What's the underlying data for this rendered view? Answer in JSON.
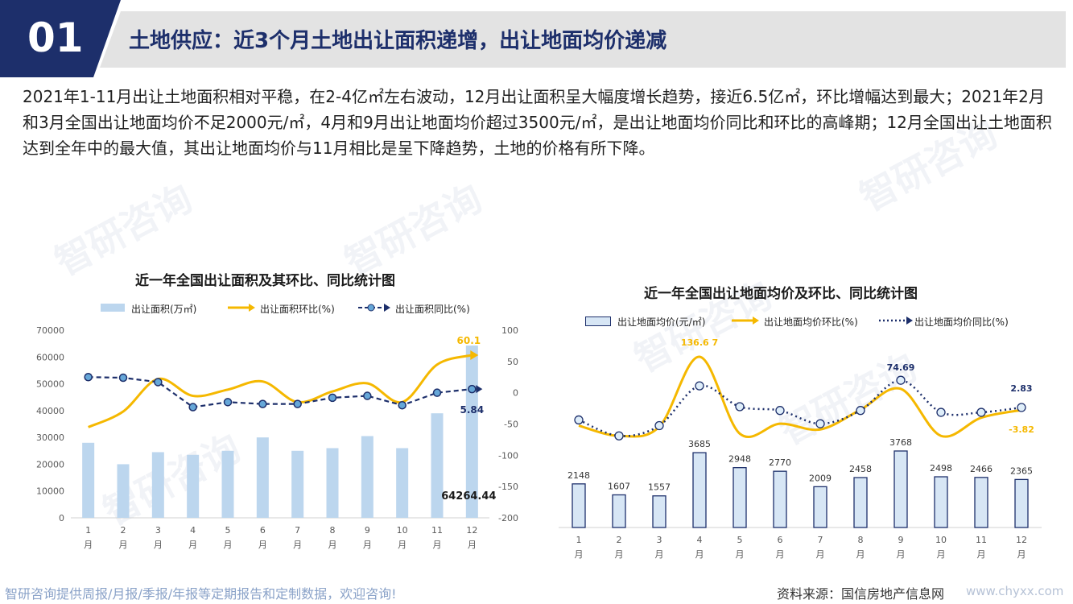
{
  "header": {
    "number": "01",
    "title": "土地供应：近3个月土地出让面积递增，出让地面均价递减"
  },
  "description": "2021年1-11月出让土地面积相对平稳，在2-4亿㎡左右波动，12月出让面积呈大幅度增长趋势，接近6.5亿㎡，环比增幅达到最大；2021年2月和3月全国出让地面均价不足2000元/㎡，4月和9月出让地面均价超过3500元/㎡，是出让地面均价同比和环比的高峰期；12月全国出让土地面积达到全年中的最大值，其出让地面均价与11月相比是呈下降趋势，土地的价格有所下降。",
  "watermark": {
    "brand": "智研咨询"
  },
  "footer": {
    "left_note": "智研咨询提供周报/月报/季报/年报等定期报告和定制数据，欢迎咨询!",
    "source": "资料来源：国信房地产信息网",
    "url": "www.chyxx.com"
  },
  "colors": {
    "navy": "#1d2f6b",
    "bar_fill": "#bcd6ee",
    "bar_outline": "#1d2f6b",
    "gold": "#f5b800",
    "dot_line": "#1d2f6b",
    "marker_fill": "#66a7d8"
  },
  "chart_data": [
    {
      "type": "bar",
      "title": "近一年全国出让面积及其环比、同比统计图",
      "categories": [
        "1\n月",
        "2\n月",
        "3\n月",
        "4\n月",
        "5\n月",
        "6\n月",
        "7\n月",
        "8\n月",
        "9\n月",
        "10\n月",
        "11\n月",
        "12\n月"
      ],
      "category_labels": [
        [
          "1",
          "月"
        ],
        [
          "2",
          "月"
        ],
        [
          "3",
          "月"
        ],
        [
          "4",
          "月"
        ],
        [
          "5",
          "月"
        ],
        [
          "6",
          "月"
        ],
        [
          "7",
          "月"
        ],
        [
          "8",
          "月"
        ],
        [
          "9",
          "月"
        ],
        [
          "10",
          "月"
        ],
        [
          "11",
          "月"
        ],
        [
          "12",
          "月"
        ]
      ],
      "series": [
        {
          "name": "出让面积(万㎡)",
          "kind": "bar",
          "axis": "left",
          "values": [
            28000,
            20000,
            24500,
            23500,
            25000,
            30000,
            25000,
            26000,
            30500,
            26000,
            39000,
            64264.44
          ]
        },
        {
          "name": "出让面积环比(%)",
          "kind": "line",
          "axis": "right",
          "values": [
            -55,
            -30,
            22,
            -5,
            5,
            18,
            -15,
            2,
            15,
            -15,
            45,
            60.1
          ]
        },
        {
          "name": "出让面积同比(%)",
          "kind": "line-dashed",
          "axis": "right",
          "values": [
            25,
            24,
            17,
            -23,
            -15,
            -18,
            -18,
            -8,
            -5,
            -20,
            0,
            5.84
          ]
        }
      ],
      "labels": {
        "bar_last": "64264.44",
        "mom_last": "60.1",
        "yoy_last": "5.84"
      },
      "left_ticks": [
        "0",
        "10000",
        "20000",
        "30000",
        "40000",
        "50000",
        "60000",
        "70000"
      ],
      "right_ticks": [
        "100",
        "50",
        "0",
        "-50",
        "-100",
        "-150",
        "-200"
      ],
      "ylim_left": [
        0,
        70000
      ],
      "ylim_right": [
        -200,
        100
      ],
      "legend": "top"
    },
    {
      "type": "bar",
      "title": "近一年全国出让地面均价及环比、同比统计图",
      "categories": [
        "1\n月",
        "2\n月",
        "3\n月",
        "4\n月",
        "5\n月",
        "6\n月",
        "7\n月",
        "8\n月",
        "9\n月",
        "10\n月",
        "11\n月",
        "12\n月"
      ],
      "category_labels": [
        [
          "1",
          "月"
        ],
        [
          "2",
          "月"
        ],
        [
          "3",
          "月"
        ],
        [
          "4",
          "月"
        ],
        [
          "5",
          "月"
        ],
        [
          "6",
          "月"
        ],
        [
          "7",
          "月"
        ],
        [
          "8",
          "月"
        ],
        [
          "9",
          "月"
        ],
        [
          "10",
          "月"
        ],
        [
          "11",
          "月"
        ],
        [
          "12",
          "月"
        ]
      ],
      "series": [
        {
          "name": "出让地面均价(元/㎡)",
          "kind": "bar",
          "values": [
            2148,
            1607,
            1557,
            3685,
            2948,
            2770,
            2009,
            2458,
            3768,
            2498,
            2466,
            2365
          ]
        },
        {
          "name": "出让地面均价环比(%)",
          "kind": "line",
          "values": [
            -45,
            -72,
            -48,
            136.67,
            -66,
            -40,
            -55,
            -3,
            52,
            -72,
            -24,
            -3.82
          ]
        },
        {
          "name": "出让地面均价同比(%)",
          "kind": "line-dotted",
          "values": [
            -30,
            -72,
            -45,
            60,
            5,
            -5,
            -40,
            -5,
            74.69,
            -10,
            -10,
            2.83
          ]
        }
      ],
      "bar_value_labels": [
        "2148",
        "1607",
        "1557",
        "3685",
        "2948",
        "2770",
        "2009",
        "2458",
        "3768",
        "2498",
        "2466",
        "2365"
      ],
      "labels": {
        "mom_peak": "136.6 7",
        "yoy_peak": "74.69",
        "yoy_last": "2.83",
        "mom_last": "-3.82"
      },
      "legend": "top"
    }
  ]
}
